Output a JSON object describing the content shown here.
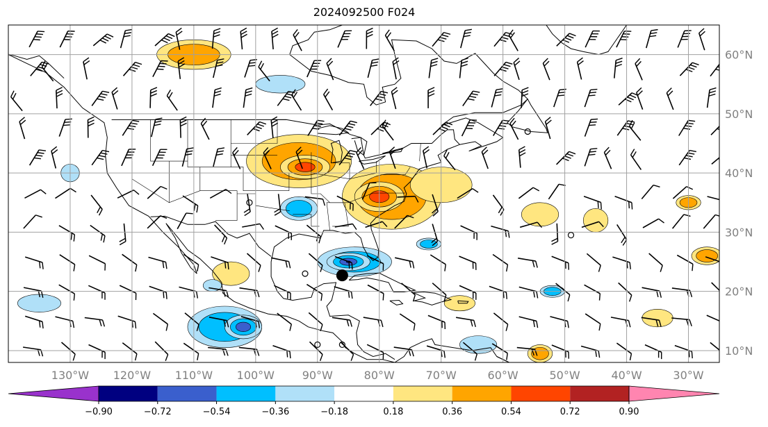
{
  "title": "2024092500 F024",
  "map": {
    "lon_range": [
      -140,
      -25
    ],
    "lat_range": [
      8,
      65
    ],
    "meridians": [
      -130,
      -120,
      -110,
      -100,
      -90,
      -80,
      -70,
      -60,
      -50,
      -40,
      -30
    ],
    "parallels": [
      10,
      20,
      30,
      40,
      50,
      60
    ],
    "lon_labels": [
      "130°W",
      "120°W",
      "110°W",
      "100°W",
      "90°W",
      "80°W",
      "70°W",
      "60°W",
      "50°W",
      "40°W",
      "30°W"
    ],
    "lat_labels": [
      "10°N",
      "20°N",
      "30°N",
      "40°N",
      "50°N",
      "60°N"
    ],
    "grid": true,
    "colors": {
      "gridline": "#a0a0a0",
      "coast": "#000000",
      "label": "#808080"
    }
  },
  "colorbar": {
    "labels": [
      "−0.90",
      "−0.72",
      "−0.54",
      "−0.36",
      "−0.18",
      "0.18",
      "0.36",
      "0.54",
      "0.72",
      "0.90"
    ],
    "colors": [
      "#9932cc",
      "#000080",
      "#3a5fcd",
      "#00bfff",
      "#b0e0f8",
      "#ffffff",
      "#ffe680",
      "#ffa500",
      "#ff4500",
      "#b22222",
      "#ff85b0"
    ],
    "extend": "both"
  },
  "storm_marker": {
    "lon": -86,
    "lat": 22.7
  },
  "positive_blobs": [
    {
      "lon": -93,
      "lat": 42,
      "rlon": 8.5,
      "rlat": 4.5,
      "level": 2
    },
    {
      "lon": -92,
      "lat": 41,
      "rlon": 4,
      "rlat": 2,
      "level": 3
    },
    {
      "lon": -78,
      "lat": 36,
      "rlon": 8,
      "rlat": 5.5,
      "level": 2
    },
    {
      "lon": -80,
      "lat": 36,
      "rlon": 4,
      "rlat": 2.5,
      "level": 3
    },
    {
      "lon": -70,
      "lat": 38,
      "rlon": 5,
      "rlat": 3,
      "level": 1
    },
    {
      "lon": -110,
      "lat": 60,
      "rlon": 6,
      "rlat": 2.5,
      "level": 2
    },
    {
      "lon": -54,
      "lat": 33,
      "rlon": 3,
      "rlat": 2,
      "level": 1
    },
    {
      "lon": -67,
      "lat": 18,
      "rlon": 2.5,
      "rlat": 1.3,
      "level": 1
    },
    {
      "lon": -45,
      "lat": 32,
      "rlon": 2,
      "rlat": 2,
      "level": 1
    },
    {
      "lon": -54,
      "lat": 9.5,
      "rlon": 2,
      "rlat": 1.5,
      "level": 2
    },
    {
      "lon": -27,
      "lat": 26,
      "rlon": 2.5,
      "rlat": 1.5,
      "level": 2
    },
    {
      "lon": -30,
      "lat": 35,
      "rlon": 2,
      "rlat": 1.2,
      "level": 2
    },
    {
      "lon": -35,
      "lat": 15.5,
      "rlon": 2.5,
      "rlat": 1.5,
      "level": 1
    },
    {
      "lon": -104,
      "lat": 23,
      "rlon": 3,
      "rlat": 2,
      "level": 1
    }
  ],
  "negative_blobs": [
    {
      "lon": -84,
      "lat": 25,
      "rlon": 6,
      "rlat": 2.5,
      "level": 3
    },
    {
      "lon": -85,
      "lat": 25,
      "rlon": 3.5,
      "rlat": 1.5,
      "level": 4
    },
    {
      "lon": -105,
      "lat": 14,
      "rlon": 6,
      "rlat": 3.5,
      "level": 2
    },
    {
      "lon": -102,
      "lat": 14,
      "rlon": 3,
      "rlat": 2,
      "level": 3
    },
    {
      "lon": -93,
      "lat": 34,
      "rlon": 3,
      "rlat": 2,
      "level": 2
    },
    {
      "lon": -96,
      "lat": 55,
      "rlon": 4,
      "rlat": 1.5,
      "level": 1
    },
    {
      "lon": -135,
      "lat": 18,
      "rlon": 3.5,
      "rlat": 1.5,
      "level": 1
    },
    {
      "lon": -64,
      "lat": 11,
      "rlon": 3,
      "rlat": 1.5,
      "level": 1
    },
    {
      "lon": -72,
      "lat": 28,
      "rlon": 2,
      "rlat": 1,
      "level": 2
    },
    {
      "lon": -52,
      "lat": 20,
      "rlon": 2,
      "rlat": 1,
      "level": 2
    },
    {
      "lon": -130,
      "lat": 40,
      "rlon": 1.5,
      "rlat": 1.5,
      "level": 1
    },
    {
      "lon": -107,
      "lat": 21,
      "rlon": 1.5,
      "rlat": 1,
      "level": 1
    }
  ]
}
